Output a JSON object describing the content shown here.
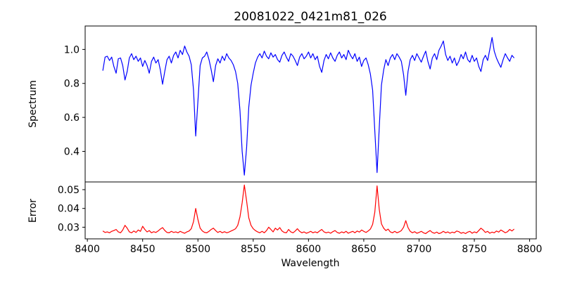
{
  "figure": {
    "title": "20081022_0421m81_026",
    "xlabel": "Wavelength",
    "background": "#ffffff",
    "axis_color": "#000000"
  },
  "chart_data": [
    {
      "type": "line",
      "panel": "top",
      "ylabel": "Spectrum",
      "grid": false,
      "legend": "none",
      "xlim": [
        8398,
        8806
      ],
      "ylim": [
        0.22,
        1.138
      ],
      "yticks": [
        0.4,
        0.6,
        0.8,
        1.0
      ],
      "ytick_labels": [
        "0.4",
        "0.6",
        "0.8",
        "1.0"
      ],
      "xticks": [],
      "xtick_labels": [],
      "series": [
        {
          "name": "spectrum",
          "color": "#0000ff",
          "x_start": 8414,
          "x_step": 2,
          "values": [
            0.875,
            0.955,
            0.96,
            0.935,
            0.955,
            0.9,
            0.86,
            0.945,
            0.95,
            0.905,
            0.82,
            0.87,
            0.95,
            0.975,
            0.94,
            0.96,
            0.93,
            0.95,
            0.9,
            0.935,
            0.905,
            0.86,
            0.93,
            0.955,
            0.92,
            0.94,
            0.88,
            0.795,
            0.87,
            0.94,
            0.96,
            0.92,
            0.965,
            0.985,
            0.95,
            0.995,
            0.97,
            1.02,
            0.985,
            0.96,
            0.91,
            0.76,
            0.49,
            0.7,
            0.905,
            0.95,
            0.96,
            0.985,
            0.94,
            0.88,
            0.81,
            0.905,
            0.945,
            0.92,
            0.96,
            0.935,
            0.975,
            0.95,
            0.935,
            0.91,
            0.87,
            0.8,
            0.64,
            0.4,
            0.26,
            0.42,
            0.66,
            0.79,
            0.86,
            0.92,
            0.955,
            0.975,
            0.95,
            0.99,
            0.96,
            0.945,
            0.98,
            0.955,
            0.97,
            0.94,
            0.925,
            0.965,
            0.985,
            0.955,
            0.93,
            0.975,
            0.96,
            0.935,
            0.905,
            0.955,
            0.975,
            0.945,
            0.96,
            0.985,
            0.95,
            0.975,
            0.94,
            0.96,
            0.9,
            0.865,
            0.935,
            0.97,
            0.945,
            0.98,
            0.95,
            0.93,
            0.965,
            0.985,
            0.95,
            0.97,
            0.94,
            0.995,
            0.965,
            0.945,
            0.975,
            0.93,
            0.955,
            0.9,
            0.935,
            0.95,
            0.91,
            0.855,
            0.76,
            0.52,
            0.275,
            0.54,
            0.79,
            0.88,
            0.94,
            0.905,
            0.95,
            0.97,
            0.94,
            0.975,
            0.955,
            0.93,
            0.85,
            0.73,
            0.87,
            0.94,
            0.965,
            0.935,
            0.975,
            0.95,
            0.925,
            0.96,
            0.99,
            0.93,
            0.885,
            0.95,
            0.975,
            0.94,
            0.995,
            1.02,
            1.05,
            0.97,
            0.935,
            0.96,
            0.92,
            0.95,
            0.905,
            0.93,
            0.97,
            0.945,
            0.985,
            0.94,
            0.925,
            0.965,
            0.93,
            0.95,
            0.9,
            0.87,
            0.94,
            0.965,
            0.935,
            1.0,
            1.07,
            0.99,
            0.95,
            0.92,
            0.895,
            0.94,
            0.975,
            0.95,
            0.93,
            0.965,
            0.95
          ]
        }
      ]
    },
    {
      "type": "line",
      "panel": "bottom",
      "ylabel": "Error",
      "grid": false,
      "legend": "none",
      "xlim": [
        8398,
        8806
      ],
      "ylim": [
        0.0238,
        0.0541
      ],
      "yticks": [
        0.03,
        0.04,
        0.05
      ],
      "ytick_labels": [
        "0.03",
        "0.04",
        "0.05"
      ],
      "xticks": [
        8400,
        8450,
        8500,
        8550,
        8600,
        8650,
        8700,
        8750,
        8800
      ],
      "xtick_labels": [
        "8400",
        "8450",
        "8500",
        "8550",
        "8600",
        "8650",
        "8700",
        "8750",
        "8800"
      ],
      "series": [
        {
          "name": "error",
          "color": "#ff0000",
          "x_start": 8414,
          "x_step": 2,
          "values": [
            0.028,
            0.0272,
            0.0275,
            0.027,
            0.0278,
            0.0282,
            0.0288,
            0.0275,
            0.027,
            0.0285,
            0.031,
            0.0295,
            0.0275,
            0.027,
            0.028,
            0.0272,
            0.0285,
            0.0278,
            0.0305,
            0.0288,
            0.0275,
            0.0282,
            0.027,
            0.0276,
            0.0272,
            0.028,
            0.029,
            0.0298,
            0.0283,
            0.0272,
            0.027,
            0.0278,
            0.0272,
            0.0275,
            0.027,
            0.0278,
            0.0272,
            0.0268,
            0.0275,
            0.028,
            0.0292,
            0.033,
            0.04,
            0.034,
            0.0295,
            0.028,
            0.0272,
            0.027,
            0.0278,
            0.0288,
            0.0295,
            0.0282,
            0.0272,
            0.0278,
            0.027,
            0.0276,
            0.027,
            0.0274,
            0.028,
            0.0285,
            0.0292,
            0.031,
            0.0355,
            0.043,
            0.0525,
            0.044,
            0.035,
            0.031,
            0.0292,
            0.0282,
            0.0275,
            0.027,
            0.0278,
            0.027,
            0.0282,
            0.03,
            0.0288,
            0.0275,
            0.0295,
            0.0285,
            0.0298,
            0.028,
            0.0272,
            0.027,
            0.0288,
            0.0275,
            0.027,
            0.028,
            0.0292,
            0.0278,
            0.027,
            0.0275,
            0.0268,
            0.0272,
            0.0278,
            0.027,
            0.0275,
            0.027,
            0.028,
            0.0288,
            0.0275,
            0.027,
            0.0274,
            0.0268,
            0.0276,
            0.0282,
            0.0272,
            0.0268,
            0.0275,
            0.027,
            0.0278,
            0.0268,
            0.0273,
            0.0278,
            0.027,
            0.028,
            0.0274,
            0.0285,
            0.0278,
            0.0272,
            0.028,
            0.029,
            0.0315,
            0.038,
            0.052,
            0.0395,
            0.0318,
            0.0295,
            0.0282,
            0.029,
            0.0275,
            0.027,
            0.0278,
            0.027,
            0.0275,
            0.0282,
            0.03,
            0.0335,
            0.0298,
            0.0278,
            0.027,
            0.0276,
            0.0268,
            0.0272,
            0.0278,
            0.027,
            0.0266,
            0.0275,
            0.0282,
            0.0272,
            0.0268,
            0.0274,
            0.0266,
            0.027,
            0.0278,
            0.027,
            0.0275,
            0.0268,
            0.0274,
            0.027,
            0.028,
            0.0276,
            0.0268,
            0.0272,
            0.0266,
            0.0274,
            0.0278,
            0.0268,
            0.0275,
            0.027,
            0.0282,
            0.0295,
            0.0285,
            0.0272,
            0.0278,
            0.0268,
            0.0274,
            0.027,
            0.028,
            0.0274,
            0.0285,
            0.0278,
            0.027,
            0.0276,
            0.0288,
            0.028,
            0.029
          ]
        }
      ]
    }
  ]
}
